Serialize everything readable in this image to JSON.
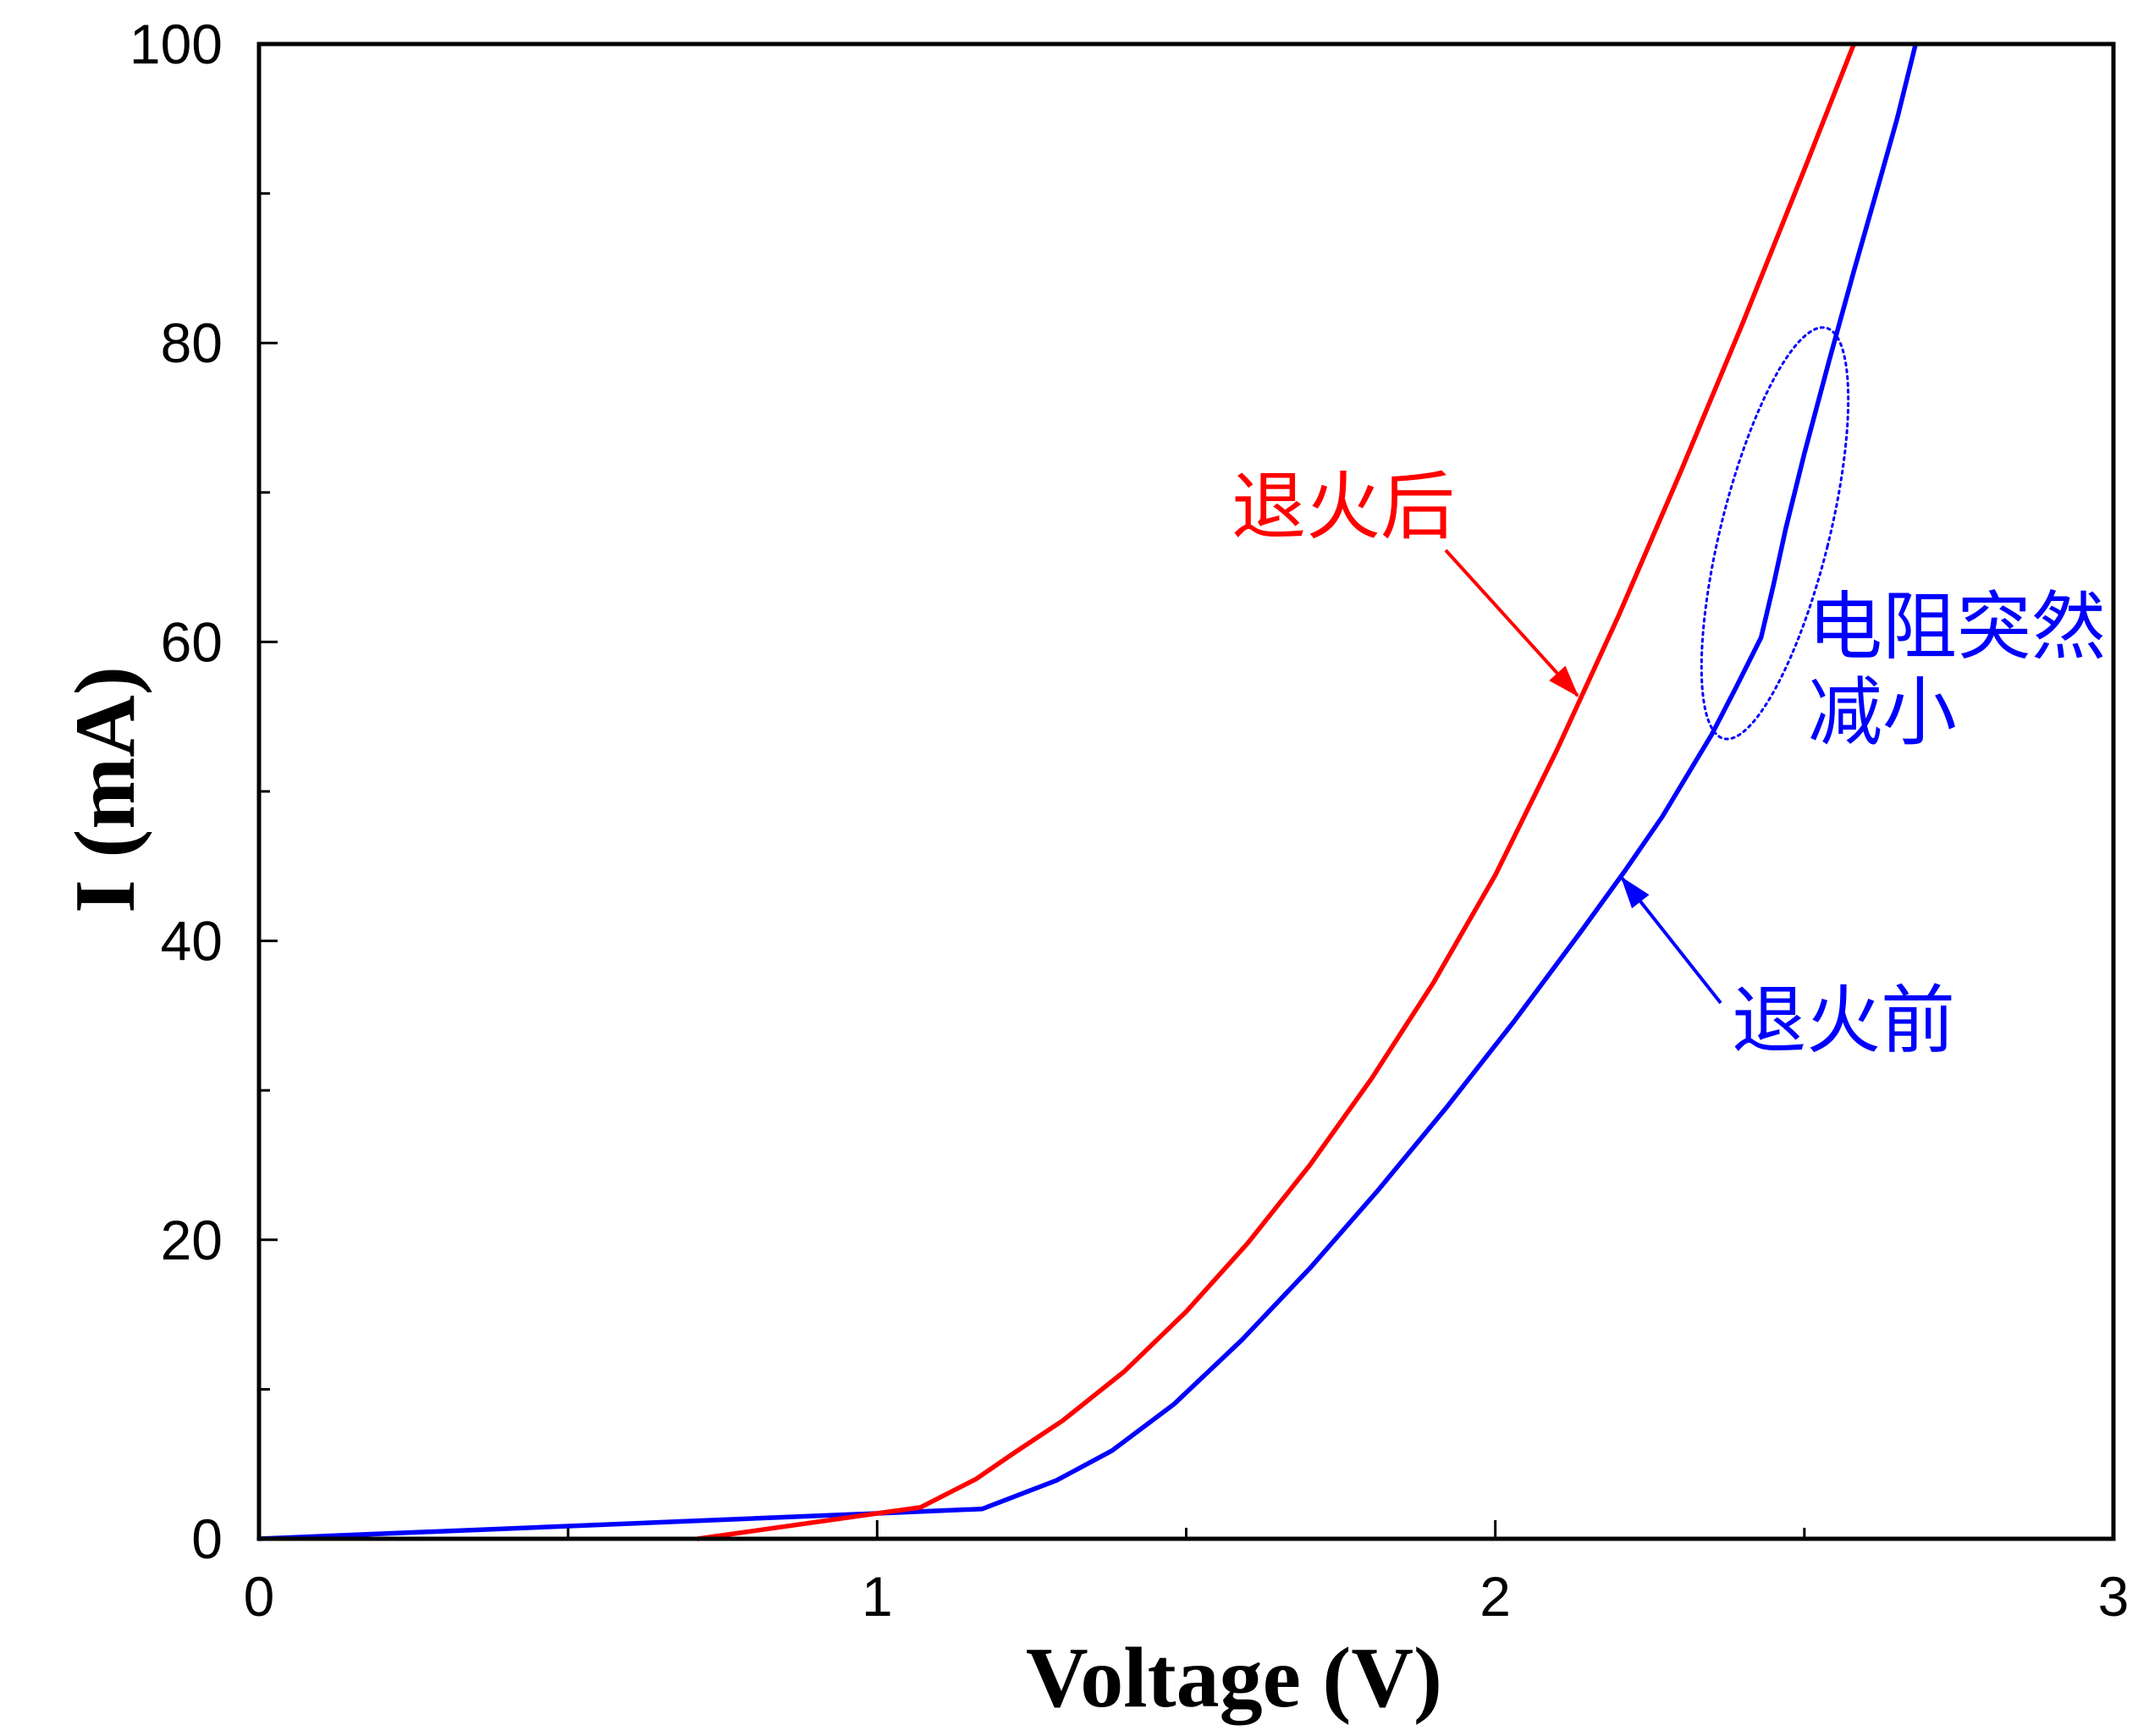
{
  "chart_data": {
    "type": "line",
    "xlabel": "Voltage (V)",
    "ylabel": "I (mA)",
    "xlim": [
      0,
      3
    ],
    "ylim": [
      0,
      100
    ],
    "xticks": [
      0,
      1,
      2,
      3
    ],
    "yticks": [
      0,
      20,
      40,
      60,
      80,
      100
    ],
    "x_minor_ticks": [
      0.5,
      1.5,
      2.5
    ],
    "y_minor_ticks": [
      10,
      30,
      50,
      70,
      90
    ],
    "grid": false,
    "series": [
      {
        "name": "退火前",
        "color": "#0000ff",
        "x": [
          0,
          1.0,
          1.17,
          1.29,
          1.38,
          1.48,
          1.59,
          1.7,
          1.81,
          1.92,
          2.03,
          2.14,
          2.21,
          2.27,
          2.35,
          2.39,
          2.43,
          2.45,
          2.47,
          2.5,
          2.54,
          2.58,
          2.62,
          2.65,
          2.68
        ],
        "y": [
          0,
          1.7,
          2.0,
          3.9,
          5.9,
          9.0,
          13.3,
          18.1,
          23.3,
          28.8,
          34.6,
          40.7,
          44.7,
          48.3,
          53.8,
          57.0,
          60.3,
          63.8,
          67.6,
          72.6,
          78.8,
          84.8,
          90.6,
          95.0,
          100
        ]
      },
      {
        "name": "退火后",
        "color": "#ff0000",
        "x": [
          0.71,
          1.0,
          1.07,
          1.16,
          1.22,
          1.3,
          1.4,
          1.5,
          1.6,
          1.7,
          1.8,
          1.9,
          2.0,
          2.1,
          2.2,
          2.3,
          2.4,
          2.5,
          2.58
        ],
        "y": [
          0,
          1.7,
          2.1,
          4.0,
          5.7,
          7.9,
          11.2,
          15.2,
          19.8,
          25.0,
          30.8,
          37.2,
          44.4,
          52.8,
          61.8,
          71.4,
          81.3,
          91.6,
          100
        ]
      }
    ],
    "annotations": [
      {
        "lines": [
          "电阻突然",
          "减小"
        ],
        "color": "#0000ff"
      }
    ]
  }
}
